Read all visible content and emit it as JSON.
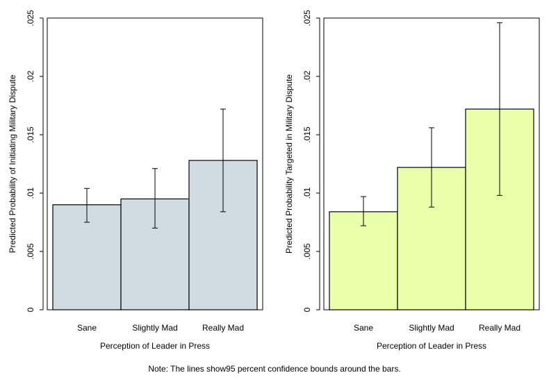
{
  "note": "Note: The lines show95 percent confidence bounds around the bars.",
  "chart_data": [
    {
      "type": "bar",
      "title": "",
      "categories": [
        "Sane",
        "Slightly Mad",
        "Really Mad"
      ],
      "values": [
        0.009,
        0.0095,
        0.0128
      ],
      "ci_lower": [
        0.0075,
        0.007,
        0.0084
      ],
      "ci_upper": [
        0.0104,
        0.0121,
        0.0172
      ],
      "xlabel": "Perception of Leader in Press",
      "ylabel": "Predicted Probability of Initiating Military Dispute",
      "ylim": [
        0,
        0.025
      ],
      "yticks": [
        0,
        0.005,
        0.01,
        0.015,
        0.02,
        0.025
      ],
      "ytick_labels": [
        "0",
        ".005",
        ".01",
        ".015",
        ".02",
        ".025"
      ],
      "bar_color": "#d0dbe2",
      "grid": false
    },
    {
      "type": "bar",
      "title": "",
      "categories": [
        "Sane",
        "Slightly Mad",
        "Really Mad"
      ],
      "values": [
        0.0084,
        0.0122,
        0.0172
      ],
      "ci_lower": [
        0.0072,
        0.0088,
        0.0098
      ],
      "ci_upper": [
        0.0097,
        0.0156,
        0.0246
      ],
      "xlabel": "Perception of Leader in Press",
      "ylabel": "Predicted Probability Targeted in Military Dispute",
      "ylim": [
        0,
        0.025
      ],
      "yticks": [
        0,
        0.005,
        0.01,
        0.015,
        0.02,
        0.025
      ],
      "ytick_labels": [
        "0",
        ".005",
        ".01",
        ".015",
        ".02",
        ".025"
      ],
      "bar_color": "#eaffaa",
      "grid": false
    }
  ]
}
